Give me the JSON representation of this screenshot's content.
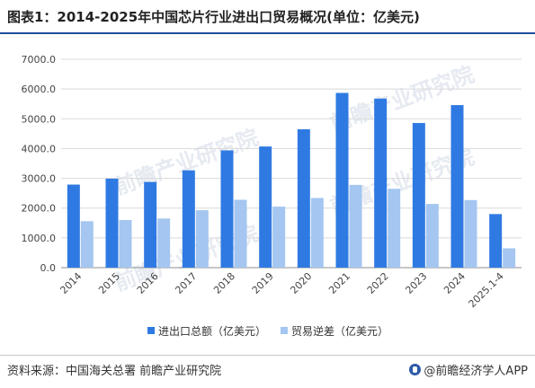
{
  "title": "图表1：2014-2025年中国芯片行业进出口贸易概况(单位：亿美元)",
  "source": "资料来源：中国海关总署 前瞻产业研究院",
  "brand": "@前瞻经济学人APP",
  "watermark": "前瞻产业研究院",
  "colors": {
    "series1": "#2f7ae2",
    "series2": "#a4c6f0",
    "grid": "#d9d9d9",
    "axis": "#8c8c8c",
    "title_rule": "#1f4e9c"
  },
  "chart_data": {
    "type": "bar",
    "title": "",
    "xlabel": "",
    "ylabel": "",
    "ylim": [
      0,
      7000
    ],
    "yticks": [
      0,
      1000,
      2000,
      3000,
      4000,
      5000,
      6000,
      7000
    ],
    "ytick_labels": [
      "0.0",
      "1000.0",
      "2000.0",
      "3000.0",
      "4000.0",
      "5000.0",
      "6000.0",
      "7000.0"
    ],
    "categories": [
      "2014",
      "2015",
      "2016",
      "2017",
      "2018",
      "2019",
      "2020",
      "2021",
      "2022",
      "2023",
      "2024",
      "2025.1-4"
    ],
    "series": [
      {
        "name": "进出口总额（亿美元）",
        "values": [
          2790,
          2990,
          2880,
          3270,
          3940,
          4070,
          4650,
          5870,
          5680,
          4860,
          5460,
          1800
        ]
      },
      {
        "name": "贸易逆差（亿美元）",
        "values": [
          1560,
          1600,
          1650,
          1930,
          2280,
          2050,
          2340,
          2780,
          2650,
          2140,
          2270,
          650
        ]
      }
    ],
    "grid": true,
    "legend": "bottom-center"
  }
}
